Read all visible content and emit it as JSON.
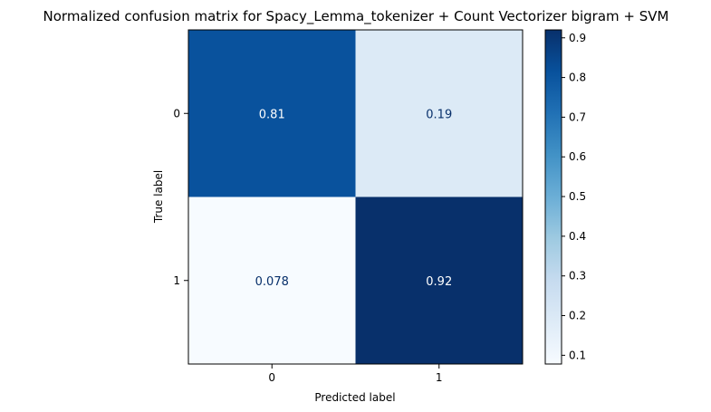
{
  "chart_data": {
    "type": "heatmap",
    "title": "Normalized confusion matrix for Spacy_Lemma_tokenizer + Count Vectorizer bigram + SVM",
    "xlabel": "Predicted label",
    "ylabel": "True label",
    "x_categories": [
      "0",
      "1"
    ],
    "y_categories": [
      "0",
      "1"
    ],
    "matrix": [
      [
        0.81,
        0.19
      ],
      [
        0.078,
        0.92
      ]
    ],
    "cell_labels": [
      [
        "0.81",
        "0.19"
      ],
      [
        "0.078",
        "0.92"
      ]
    ],
    "colormap": "Blues",
    "colorbar": {
      "min": 0.078,
      "max": 0.92,
      "ticks": [
        "0.1",
        "0.2",
        "0.3",
        "0.4",
        "0.5",
        "0.6",
        "0.7",
        "0.8",
        "0.9"
      ]
    },
    "text_colors": {
      "on_light": "#08306b",
      "on_dark": "#ffffff"
    },
    "grid": false
  }
}
